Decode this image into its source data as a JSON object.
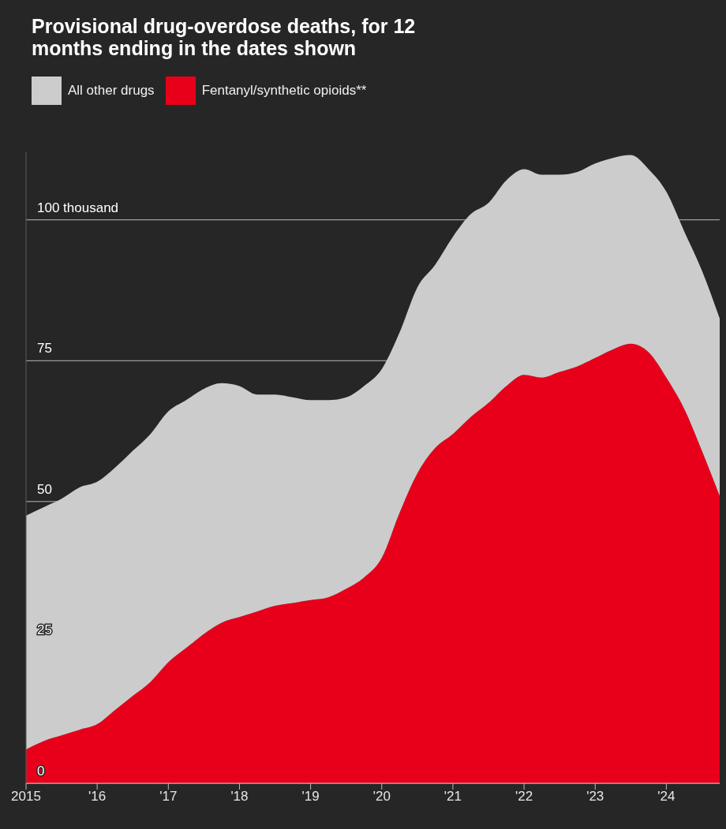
{
  "chart_data": {
    "type": "area",
    "title": "Provisional drug-overdose deaths, for 12 months ending in the dates shown",
    "stacked": true,
    "legend": "top left",
    "grid": "y",
    "x": [
      2015.0,
      2015.25,
      2015.5,
      2015.75,
      2016.0,
      2016.25,
      2016.5,
      2016.75,
      2017.0,
      2017.25,
      2017.5,
      2017.75,
      2018.0,
      2018.25,
      2018.5,
      2018.75,
      2019.0,
      2019.25,
      2019.5,
      2019.75,
      2020.0,
      2020.25,
      2020.5,
      2020.75,
      2021.0,
      2021.25,
      2021.5,
      2021.75,
      2022.0,
      2022.25,
      2022.5,
      2022.75,
      2023.0,
      2023.25,
      2023.5,
      2023.75,
      2024.0,
      2024.25,
      2024.5,
      2024.75
    ],
    "series": [
      {
        "name": "Fentanyl/synthetic opioids**",
        "color": "#e8001a",
        "values": [
          6,
          7.5,
          8.5,
          9.5,
          10.5,
          13,
          15.5,
          18,
          21.5,
          24,
          26.5,
          28.5,
          29.5,
          30.5,
          31.5,
          32,
          32.5,
          33,
          34.5,
          36.5,
          40,
          48,
          55,
          59.5,
          62,
          65,
          67.5,
          70.5,
          72.5,
          72,
          73,
          74,
          75.5,
          77,
          78,
          76.5,
          72,
          66.5,
          59,
          51
        ]
      },
      {
        "name": "All other drugs",
        "color": "#cccccc",
        "values": [
          41.5,
          41.5,
          42,
          43,
          43,
          43,
          43.5,
          44,
          44.5,
          44,
          43.5,
          42.5,
          41,
          38.5,
          37.5,
          36.5,
          35.5,
          35,
          34,
          34,
          33.5,
          32,
          33,
          32.5,
          35,
          36,
          35.5,
          36.5,
          36.5,
          36,
          35,
          34.5,
          34.5,
          34,
          33.5,
          32.5,
          33,
          31.5,
          32,
          31.5
        ]
      }
    ],
    "xlim": [
      2015,
      2024.75
    ],
    "xticks": [
      2015,
      {
        "value": 2016,
        "label": "'16"
      },
      {
        "value": 2017,
        "label": "'17"
      },
      {
        "value": 2018,
        "label": "'18"
      },
      {
        "value": 2019,
        "label": "'19"
      },
      {
        "value": 2020,
        "label": "'20"
      },
      {
        "value": 2021,
        "label": "'21"
      },
      {
        "value": 2022,
        "label": "'22"
      },
      {
        "value": 2023,
        "label": "'23"
      },
      {
        "value": 2024,
        "label": "'24"
      }
    ],
    "ylim": [
      0,
      112
    ],
    "yticks": [
      0,
      25,
      50,
      75,
      {
        "value": 100,
        "label": "100 thousand"
      }
    ]
  }
}
